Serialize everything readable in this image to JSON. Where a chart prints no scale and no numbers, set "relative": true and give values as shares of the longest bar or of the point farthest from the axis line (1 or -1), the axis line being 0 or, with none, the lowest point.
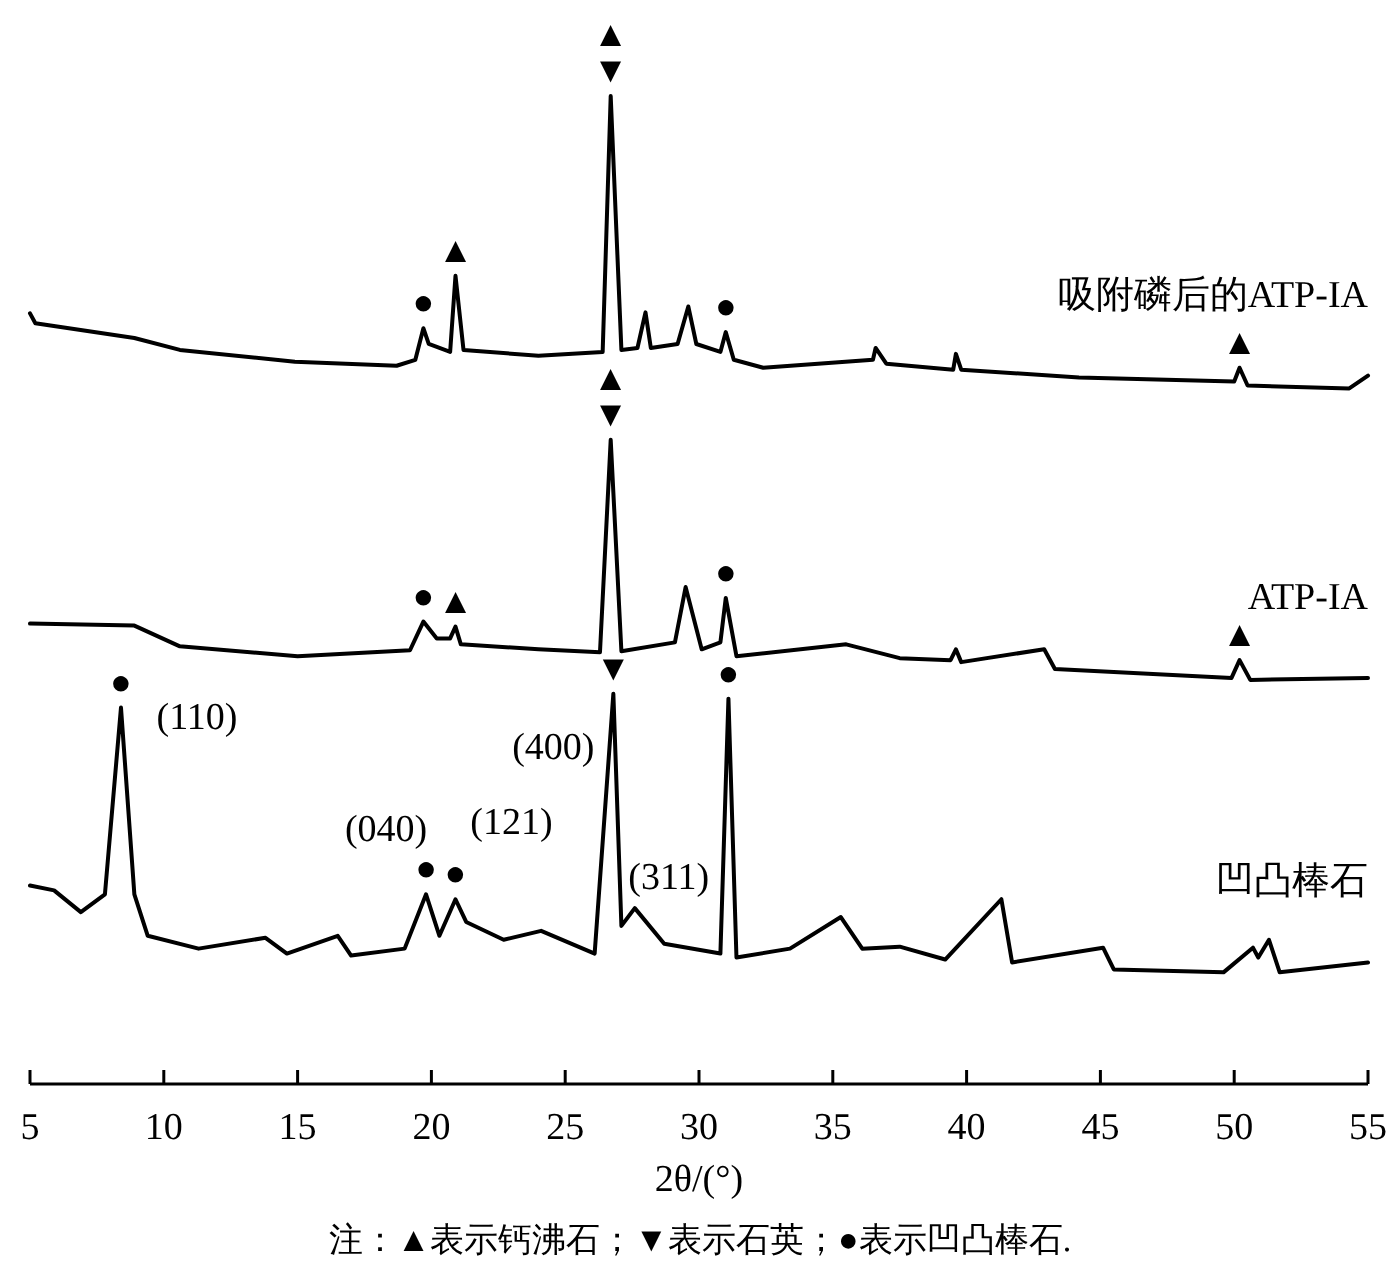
{
  "chart_data": {
    "type": "line",
    "relative": true,
    "xlabel": "2θ/(°)",
    "xlim": [
      5,
      55
    ],
    "xticks": [
      5,
      10,
      15,
      20,
      25,
      30,
      35,
      40,
      45,
      50,
      55
    ],
    "series": [
      {
        "name": "吸附磷后的ATP-IA",
        "color": "#000000",
        "x": [
          5,
          5.2,
          8.9,
          10.6,
          14.9,
          18.7,
          19.4,
          19.7,
          19.9,
          20.7,
          20.9,
          21.2,
          24.0,
          26.4,
          26.7,
          27.1,
          27.7,
          28.0,
          28.2,
          29.2,
          29.6,
          29.9,
          30.8,
          31.0,
          31.3,
          32.4,
          36.5,
          36.6,
          37.0,
          39.5,
          39.6,
          39.8,
          44.2,
          50.0,
          50.2,
          50.5,
          54.3,
          55
        ],
        "values": [
          0.78,
          0.77,
          0.755,
          0.743,
          0.731,
          0.727,
          0.733,
          0.765,
          0.749,
          0.741,
          0.818,
          0.743,
          0.737,
          0.741,
          1.0,
          0.743,
          0.745,
          0.781,
          0.745,
          0.749,
          0.787,
          0.749,
          0.741,
          0.761,
          0.733,
          0.725,
          0.733,
          0.745,
          0.729,
          0.723,
          0.739,
          0.723,
          0.715,
          0.711,
          0.725,
          0.707,
          0.704,
          0.717
        ]
      },
      {
        "name": "ATP-IA",
        "color": "#000000",
        "x": [
          5,
          8.9,
          10.6,
          15.0,
          19.2,
          19.7,
          20.2,
          20.7,
          20.9,
          21.1,
          24.0,
          26.3,
          26.7,
          27.1,
          29.1,
          29.5,
          30.1,
          30.8,
          31.0,
          31.4,
          35.5,
          37.5,
          39.4,
          39.6,
          39.8,
          42.9,
          43.3,
          49.9,
          50.2,
          50.6,
          55
        ],
        "values": [
          0.466,
          0.464,
          0.443,
          0.433,
          0.439,
          0.468,
          0.451,
          0.451,
          0.463,
          0.445,
          0.44,
          0.437,
          0.652,
          0.438,
          0.447,
          0.503,
          0.44,
          0.447,
          0.492,
          0.433,
          0.445,
          0.431,
          0.429,
          0.44,
          0.427,
          0.44,
          0.42,
          0.411,
          0.429,
          0.409,
          0.411
        ]
      },
      {
        "name": "凹凸棒石",
        "color": "#000000",
        "x": [
          5,
          5.9,
          6.9,
          7.8,
          8.4,
          8.9,
          9.4,
          11.3,
          13.8,
          14.6,
          16.5,
          17.0,
          19.0,
          19.8,
          20.3,
          20.9,
          21.3,
          22.7,
          24.1,
          26.1,
          26.8,
          27.1,
          27.6,
          28.7,
          30.8,
          31.1,
          31.4,
          33.4,
          35.3,
          36.1,
          37.5,
          39.2,
          41.3,
          41.7,
          45.1,
          45.5,
          49.6,
          50.7,
          50.9,
          51.3,
          51.7,
          55
        ],
        "values": [
          0.201,
          0.196,
          0.174,
          0.192,
          0.381,
          0.192,
          0.15,
          0.137,
          0.148,
          0.132,
          0.15,
          0.13,
          0.137,
          0.192,
          0.15,
          0.187,
          0.164,
          0.146,
          0.155,
          0.132,
          0.395,
          0.16,
          0.178,
          0.142,
          0.132,
          0.39,
          0.128,
          0.137,
          0.169,
          0.137,
          0.139,
          0.126,
          0.187,
          0.123,
          0.138,
          0.116,
          0.113,
          0.138,
          0.128,
          0.146,
          0.113,
          0.123
        ]
      }
    ],
    "annotations": [
      {
        "text": "●",
        "x": 19.7,
        "y": 0.765
      },
      {
        "text": "▲",
        "x": 20.9,
        "y": 0.818
      },
      {
        "text": "▼",
        "x": 26.7,
        "y": 1.0
      },
      {
        "text": "▲",
        "x": 26.7,
        "y": 1.0
      },
      {
        "text": "●",
        "x": 31.0,
        "y": 0.761
      },
      {
        "text": "▲",
        "x": 50.2,
        "y": 0.725
      },
      {
        "text": "▼",
        "x": 26.7,
        "y": 0.652
      },
      {
        "text": "▲",
        "x": 26.7,
        "y": 0.652
      },
      {
        "text": "●",
        "x": 19.7,
        "y": 0.468
      },
      {
        "text": "▲",
        "x": 20.9,
        "y": 0.463
      },
      {
        "text": "●",
        "x": 31.0,
        "y": 0.492
      },
      {
        "text": "▲",
        "x": 50.2,
        "y": 0.429
      },
      {
        "text": "●",
        "x": 8.4,
        "y": 0.381
      },
      {
        "text": "(110)",
        "x": 8.4,
        "y": 0.381
      },
      {
        "text": "▼",
        "x": 26.8,
        "y": 0.395
      },
      {
        "text": "(400)",
        "x": 26.8,
        "y": 0.395
      },
      {
        "text": "●",
        "x": 31.1,
        "y": 0.39
      },
      {
        "text": "(040)",
        "x": 19.8,
        "y": 0.192
      },
      {
        "text": "●",
        "x": 19.8,
        "y": 0.192
      },
      {
        "text": "●",
        "x": 20.9,
        "y": 0.187
      },
      {
        "text": "(121)",
        "x": 20.9,
        "y": 0.187
      },
      {
        "text": "(311)",
        "x": 27.6,
        "y": 0.178
      },
      "注：▲表示钙沸石；▼表示石英；●表示凹凸棒石."
    ]
  }
}
